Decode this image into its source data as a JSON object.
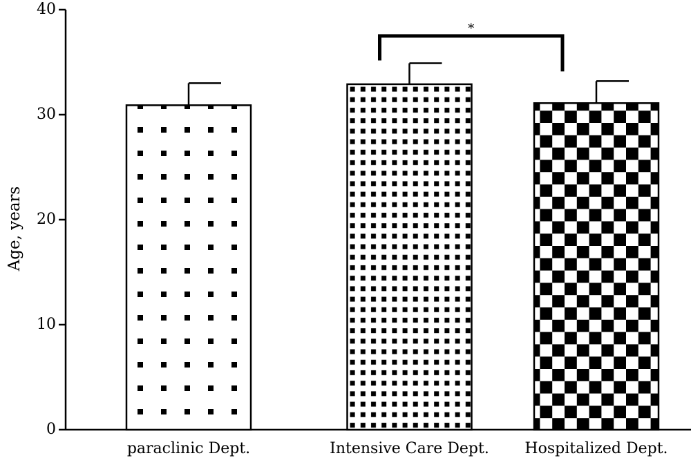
{
  "chart_data": {
    "type": "bar",
    "title": "",
    "xlabel": "",
    "ylabel": "Age, years",
    "ylim": [
      0,
      40
    ],
    "yticks": [
      0,
      10,
      20,
      30,
      40
    ],
    "grid": false,
    "categories": [
      "paraclinic Dept.",
      "Intensive Care Dept.",
      "Hospitalized Dept."
    ],
    "values": [
      30.9,
      32.9,
      31.1
    ],
    "errors": [
      2.1,
      2.0,
      2.1
    ],
    "patterns": [
      "sparse-dots",
      "dense-dots",
      "checkerboard"
    ],
    "significance": [
      {
        "from": 1,
        "to": 2,
        "label": "*",
        "y": 37.5
      }
    ]
  }
}
